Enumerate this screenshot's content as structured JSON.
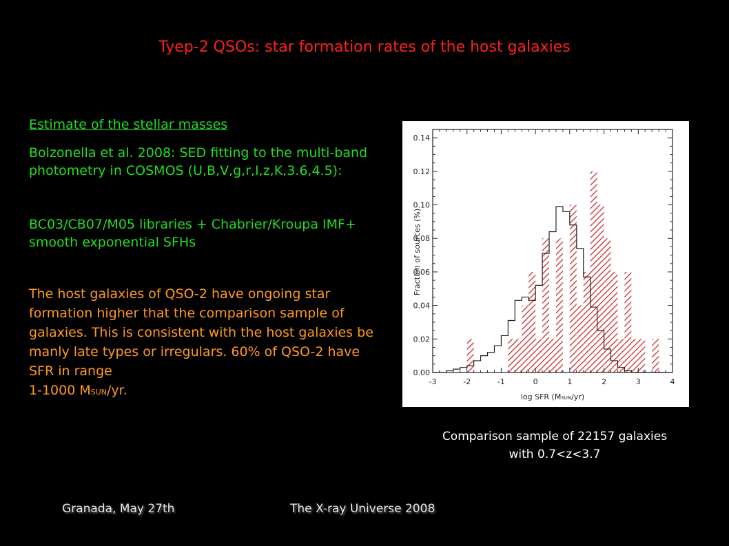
{
  "slide": {
    "title": "Tyep-2 QSOs: star formation rates of the host galaxies",
    "heading": "Estimate of the stellar masses",
    "para1": "Bolzonella et al. 2008: SED fitting to the multi-band photometry in COSMOS (U,B,V,g,r,I,z,K,3.6,4.5):",
    "para2": "BC03/CB07/M05 libraries + Chabrier/Kroupa IMF+ smooth exponential SFHs",
    "para3": "The host galaxies of QSO-2 have ongoing star formation higher that the comparison sample of galaxies. This is consistent with the host galaxies be manly late types or irregulars. 60% of QSO-2 have SFR in range",
    "para3_range": "1-1000 M",
    "para3_sub": "SUN",
    "para3_end": "/yr.",
    "caption": "Comparison sample of 22157 galaxies with 0.7<z<3.7",
    "footer_left": "Granada, May 27th",
    "footer_center": "The X-ray Universe 2008"
  },
  "chart_data": {
    "type": "bar",
    "ylabel": "Fraction of sources (%)",
    "xlabel_main": "log SFR (M",
    "xlabel_sub": "SUN",
    "xlabel_end": "/yr)",
    "xlim": [
      -3,
      4
    ],
    "ylim": [
      0,
      0.145
    ],
    "xticks": [
      "-3",
      "-2",
      "-1",
      "0",
      "1",
      "2",
      "3",
      "4"
    ],
    "yticks": [
      "0.00",
      "0.02",
      "0.04",
      "0.06",
      "0.08",
      "0.10",
      "0.12",
      "0.14"
    ],
    "bin_width": 0.2,
    "series": [
      {
        "style": "black step outline",
        "bin_start": -3.0,
        "values": [
          0,
          0,
          0.001,
          0.002,
          0.003,
          0.004,
          0.007,
          0.01,
          0.012,
          0.016,
          0.022,
          0.031,
          0.043,
          0.045,
          0.043,
          0.052,
          0.071,
          0.084,
          0.099,
          0.096,
          0.088,
          0.074,
          0.057,
          0.039,
          0.025,
          0.014,
          0.007,
          0.003,
          0.001,
          0,
          0,
          0,
          0,
          0,
          0
        ]
      },
      {
        "style": "red hatched",
        "bin_start": -2.0,
        "values": [
          0.02,
          0,
          0,
          0,
          0,
          0,
          0.02,
          0.02,
          0.04,
          0.06,
          0.02,
          0.08,
          0.02,
          0.08,
          0,
          0.1,
          0.04,
          0.06,
          0.12,
          0.1,
          0.08,
          0.06,
          0.02,
          0.06,
          0.02,
          0.02,
          0,
          0.02
        ]
      }
    ]
  }
}
